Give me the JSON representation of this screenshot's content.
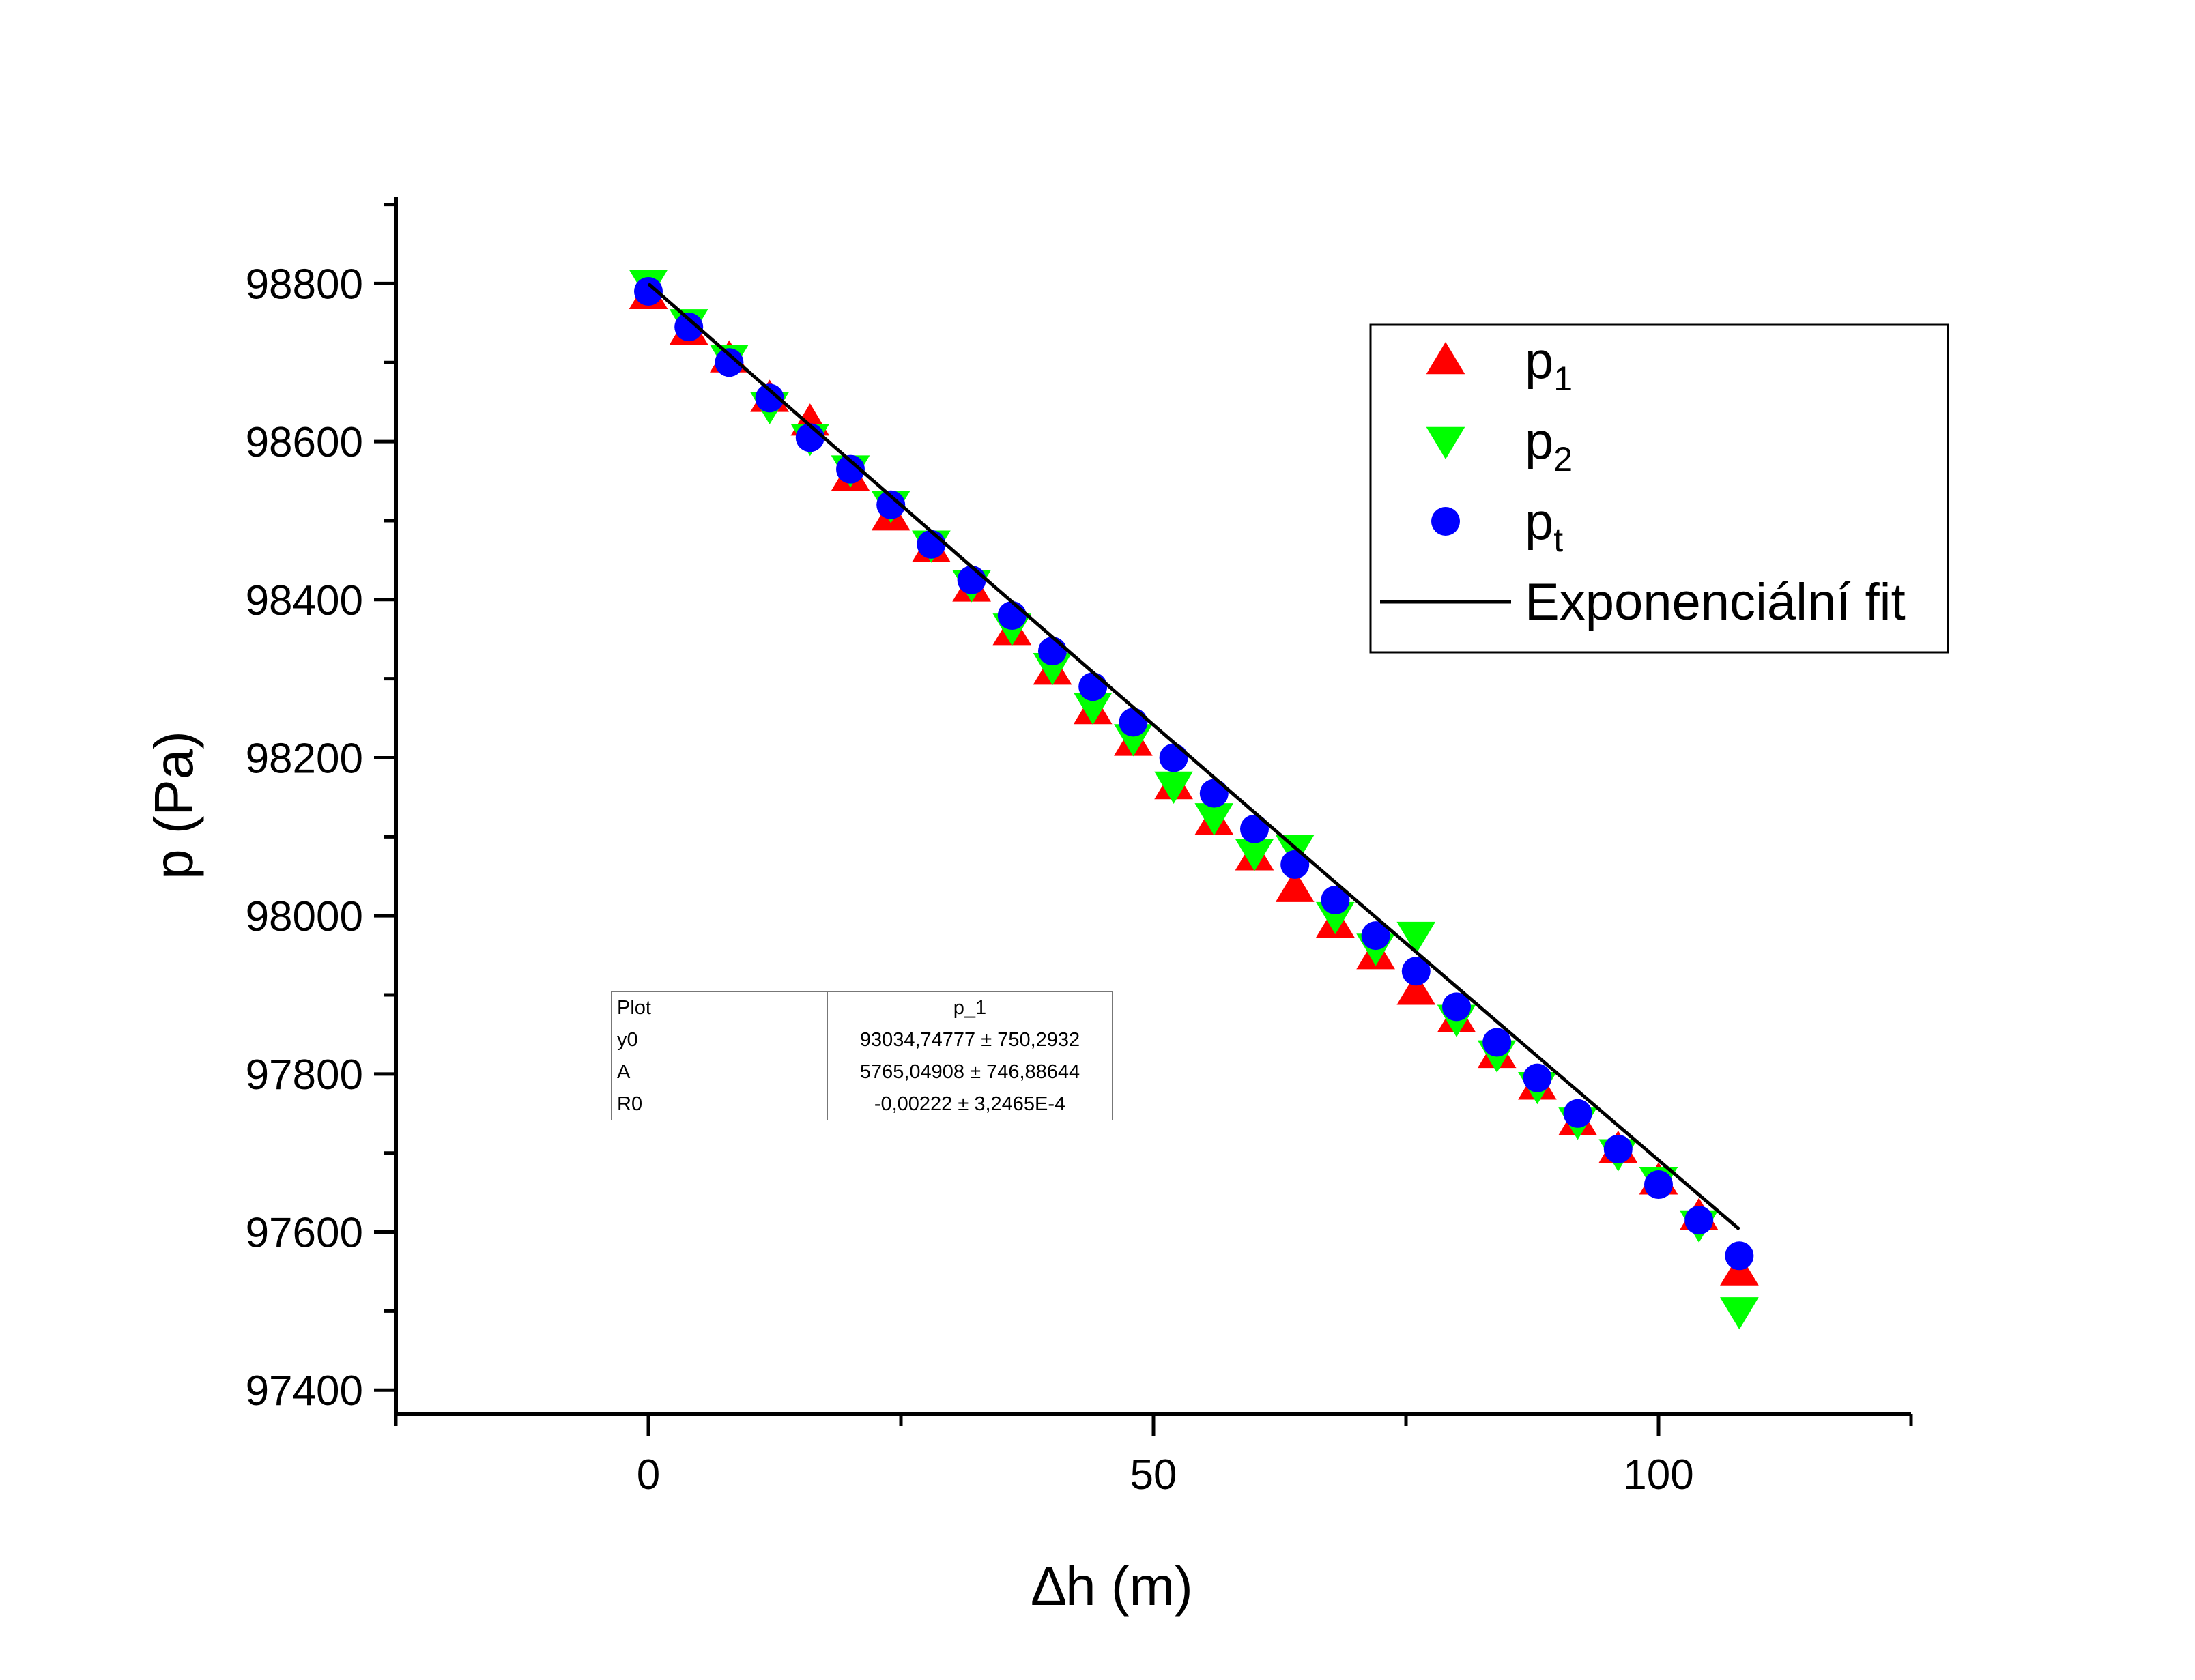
{
  "chart_data": {
    "type": "scatter",
    "xlabel": "∆h (m)",
    "ylabel": "p (Pa)",
    "xlim": [
      -25,
      125
    ],
    "ylim": [
      97370,
      98910
    ],
    "x_ticks": [
      0,
      50,
      100
    ],
    "y_ticks": [
      97400,
      97600,
      97800,
      98000,
      98200,
      98400,
      98600,
      98800
    ],
    "legend_position": "top-right",
    "series": [
      {
        "name": "p",
        "name_sub": "1",
        "marker": "triangle-up",
        "color": "#ff0000",
        "x": [
          0,
          4,
          8,
          12,
          16,
          20,
          24,
          28,
          32,
          36,
          40,
          44,
          48,
          52,
          56,
          60,
          64,
          68,
          72,
          76,
          80,
          84,
          88,
          92,
          96,
          100,
          104,
          108
        ],
        "y": [
          98785,
          98740,
          98705,
          98655,
          98625,
          98555,
          98505,
          98465,
          98415,
          98360,
          98310,
          98260,
          98220,
          98165,
          98120,
          98075,
          98035,
          97990,
          97950,
          97905,
          97870,
          97825,
          97785,
          97740,
          97705,
          97665,
          97620,
          97550
        ]
      },
      {
        "name": "p",
        "name_sub": "2",
        "marker": "triangle-down",
        "color": "#00ff00",
        "x": [
          0,
          4,
          8,
          12,
          16,
          20,
          24,
          28,
          32,
          36,
          40,
          44,
          48,
          52,
          56,
          60,
          64,
          68,
          72,
          76,
          80,
          84,
          88,
          92,
          96,
          100,
          104,
          108
        ],
        "y": [
          98800,
          98750,
          98705,
          98645,
          98605,
          98565,
          98520,
          98470,
          98420,
          98365,
          98315,
          98265,
          98225,
          98165,
          98125,
          98080,
          98085,
          98000,
          97960,
          97975,
          97870,
          97825,
          97785,
          97740,
          97700,
          97665,
          97610,
          97500
        ]
      },
      {
        "name": "p",
        "name_sub": "t",
        "marker": "circle",
        "color": "#0000ff",
        "x": [
          0,
          4,
          8,
          12,
          16,
          20,
          24,
          28,
          32,
          36,
          40,
          44,
          48,
          52,
          56,
          60,
          64,
          68,
          72,
          76,
          80,
          84,
          88,
          92,
          96,
          100,
          104,
          108
        ],
        "y": [
          98790,
          98745,
          98700,
          98655,
          98605,
          98565,
          98520,
          98470,
          98425,
          98380,
          98335,
          98290,
          98245,
          98200,
          98155,
          98110,
          98065,
          98020,
          97975,
          97930,
          97885,
          97840,
          97795,
          97750,
          97705,
          97660,
          97615,
          97570
        ]
      },
      {
        "name": "Exponenciální fit",
        "type": "line",
        "color": "#000000",
        "x": [
          0,
          10,
          20,
          30,
          40,
          50,
          60,
          70,
          80,
          90,
          100,
          108
        ],
        "y": [
          98799.8,
          98687.5,
          98575.6,
          98463.9,
          98352.6,
          98241.5,
          98130.8,
          98020.3,
          97910.2,
          97800.4,
          97690.9,
          97603.5
        ]
      }
    ],
    "fit_table": {
      "header": [
        "Plot",
        "p_1"
      ],
      "rows": [
        [
          "y0",
          "93034,74777 ± 750,2932"
        ],
        [
          "A",
          "5765,04908 ± 746,88644"
        ],
        [
          "R0",
          "-0,00222 ± 3,2465E-4"
        ]
      ]
    }
  }
}
